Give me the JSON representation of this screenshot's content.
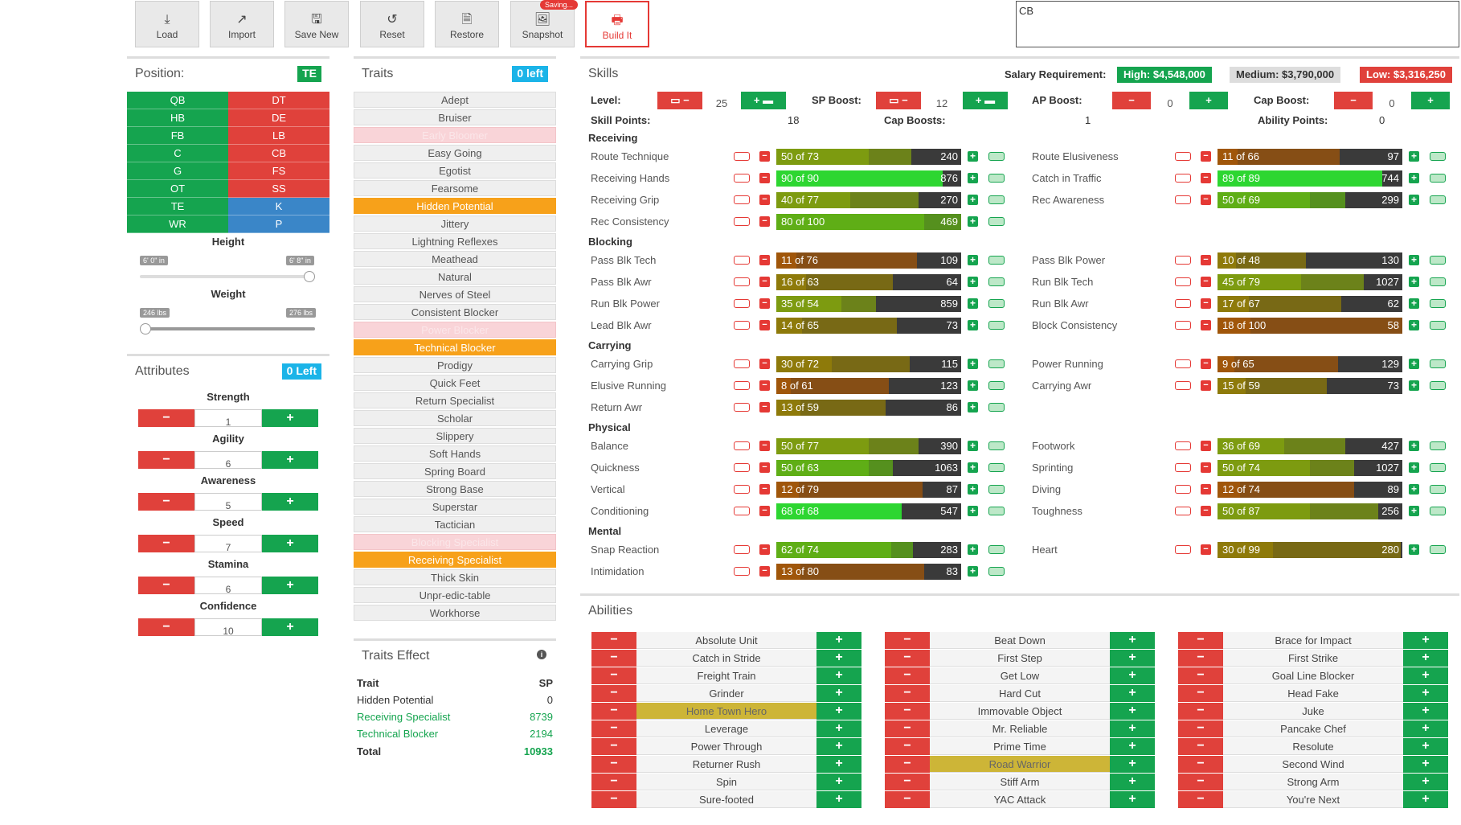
{
  "toolbar": {
    "load": "Load",
    "import": "Import",
    "save_new": "Save New",
    "reset": "Reset",
    "restore": "Restore",
    "snapshot": "Snapshot",
    "saving": "Saving...",
    "build": "Build It"
  },
  "notes_value": "CB",
  "position": {
    "title": "Position:",
    "badge": "TE",
    "left": [
      "QB",
      "HB",
      "FB",
      "C",
      "G",
      "OT",
      "TE",
      "WR"
    ],
    "right": [
      "DT",
      "DE",
      "LB",
      "CB",
      "FS",
      "SS",
      "K",
      "P"
    ]
  },
  "height": {
    "label": "Height",
    "min": "6' 0\" in",
    "max": "6' 8\" in",
    "fraction": 1.0
  },
  "weight": {
    "label": "Weight",
    "min": "246 lbs",
    "max": "276 lbs",
    "fraction": 0.0
  },
  "attributes": {
    "title": "Attributes",
    "badge": "0 Left",
    "items": [
      {
        "name": "Strength",
        "value": "1"
      },
      {
        "name": "Agility",
        "value": "6"
      },
      {
        "name": "Awareness",
        "value": "5"
      },
      {
        "name": "Speed",
        "value": "7"
      },
      {
        "name": "Stamina",
        "value": "6"
      },
      {
        "name": "Confidence",
        "value": "10"
      }
    ]
  },
  "traits": {
    "title": "Traits",
    "badge": "0 left",
    "items": [
      {
        "n": "Adept",
        "s": "n"
      },
      {
        "n": "Bruiser",
        "s": "n"
      },
      {
        "n": "Early Bloomer",
        "s": "d"
      },
      {
        "n": "Easy Going",
        "s": "n"
      },
      {
        "n": "Egotist",
        "s": "n"
      },
      {
        "n": "Fearsome",
        "s": "n"
      },
      {
        "n": "Hidden Potential",
        "s": "o"
      },
      {
        "n": "Jittery",
        "s": "n"
      },
      {
        "n": "Lightning Reflexes",
        "s": "n"
      },
      {
        "n": "Meathead",
        "s": "n"
      },
      {
        "n": "Natural",
        "s": "n"
      },
      {
        "n": "Nerves of Steel",
        "s": "n"
      },
      {
        "n": "Consistent Blocker",
        "s": "n"
      },
      {
        "n": "Power Blocker",
        "s": "d"
      },
      {
        "n": "Technical Blocker",
        "s": "o"
      },
      {
        "n": "Prodigy",
        "s": "n"
      },
      {
        "n": "Quick Feet",
        "s": "n"
      },
      {
        "n": "Return Specialist",
        "s": "n"
      },
      {
        "n": "Scholar",
        "s": "n"
      },
      {
        "n": "Slippery",
        "s": "n"
      },
      {
        "n": "Soft Hands",
        "s": "n"
      },
      {
        "n": "Spring Board",
        "s": "n"
      },
      {
        "n": "Strong Base",
        "s": "n"
      },
      {
        "n": "Superstar",
        "s": "n"
      },
      {
        "n": "Tactician",
        "s": "n"
      },
      {
        "n": "Blocking Specialist",
        "s": "d"
      },
      {
        "n": "Receiving Specialist",
        "s": "o"
      },
      {
        "n": "Thick Skin",
        "s": "n"
      },
      {
        "n": "Unpr-edic-table",
        "s": "n"
      },
      {
        "n": "Workhorse",
        "s": "n"
      }
    ]
  },
  "traits_effect": {
    "title": "Traits Effect",
    "h_trait": "Trait",
    "h_sp": "SP",
    "rows": [
      {
        "n": "Hidden Potential",
        "v": "0",
        "g": false
      },
      {
        "n": "Receiving Specialist",
        "v": "8739",
        "g": true
      },
      {
        "n": "Technical Blocker",
        "v": "2194",
        "g": true
      }
    ],
    "total_label": "Total",
    "total": "10933"
  },
  "skills": {
    "title": "Skills",
    "salary_label": "Salary Requirement:",
    "high": "High: $4,548,000",
    "medium": "Medium: $3,790,000",
    "low": "Low: $3,316,250",
    "level_label": "Level:",
    "level": "25",
    "sp_boost_label": "SP Boost:",
    "sp_boost": "12",
    "ap_boost_label": "AP Boost:",
    "ap_boost": "0",
    "cap_boost_label": "Cap Boost:",
    "cap_boost": "0",
    "skill_points_label": "Skill Points:",
    "skill_points": "18",
    "cap_boosts_label": "Cap Boosts:",
    "cap_boosts": "1",
    "ability_points_label": "Ability Points:",
    "ability_points": "0",
    "categories": [
      {
        "name": "Receiving",
        "left": [
          {
            "n": "Route Technique",
            "cur": 50,
            "max": 73,
            "cost": "240"
          },
          {
            "n": "Receiving Hands",
            "cur": 90,
            "max": 90,
            "cost": "876"
          },
          {
            "n": "Receiving Grip",
            "cur": 40,
            "max": 77,
            "cost": "270"
          },
          {
            "n": "Rec Consistency",
            "cur": 80,
            "max": 100,
            "cost": "469"
          }
        ],
        "right": [
          {
            "n": "Route Elusiveness",
            "cur": 11,
            "max": 66,
            "cost": "97"
          },
          {
            "n": "Catch in Traffic",
            "cur": 89,
            "max": 89,
            "cost": "744"
          },
          {
            "n": "Rec Awareness",
            "cur": 50,
            "max": 69,
            "cost": "299"
          }
        ]
      },
      {
        "name": "Blocking",
        "left": [
          {
            "n": "Pass Blk Tech",
            "cur": 11,
            "max": 76,
            "cost": "109"
          },
          {
            "n": "Pass Blk Awr",
            "cur": 16,
            "max": 63,
            "cost": "64"
          },
          {
            "n": "Run Blk Power",
            "cur": 35,
            "max": 54,
            "cost": "859"
          },
          {
            "n": "Lead Blk Awr",
            "cur": 14,
            "max": 65,
            "cost": "73"
          }
        ],
        "right": [
          {
            "n": "Pass Blk Power",
            "cur": 10,
            "max": 48,
            "cost": "130"
          },
          {
            "n": "Run Blk Tech",
            "cur": 45,
            "max": 79,
            "cost": "1027"
          },
          {
            "n": "Run Blk Awr",
            "cur": 17,
            "max": 67,
            "cost": "62"
          },
          {
            "n": "Block Consistency",
            "cur": 18,
            "max": 100,
            "cost": "58"
          }
        ]
      },
      {
        "name": "Carrying",
        "left": [
          {
            "n": "Carrying Grip",
            "cur": 30,
            "max": 72,
            "cost": "115"
          },
          {
            "n": "Elusive Running",
            "cur": 8,
            "max": 61,
            "cost": "123"
          },
          {
            "n": "Return Awr",
            "cur": 13,
            "max": 59,
            "cost": "86"
          }
        ],
        "right": [
          {
            "n": "Power Running",
            "cur": 9,
            "max": 65,
            "cost": "129"
          },
          {
            "n": "Carrying Awr",
            "cur": 15,
            "max": 59,
            "cost": "73"
          }
        ]
      },
      {
        "name": "Physical",
        "left": [
          {
            "n": "Balance",
            "cur": 50,
            "max": 77,
            "cost": "390"
          },
          {
            "n": "Quickness",
            "cur": 50,
            "max": 63,
            "cost": "1063"
          },
          {
            "n": "Vertical",
            "cur": 12,
            "max": 79,
            "cost": "87"
          },
          {
            "n": "Conditioning",
            "cur": 68,
            "max": 68,
            "cost": "547"
          }
        ],
        "right": [
          {
            "n": "Footwork",
            "cur": 36,
            "max": 69,
            "cost": "427"
          },
          {
            "n": "Sprinting",
            "cur": 50,
            "max": 74,
            "cost": "1027"
          },
          {
            "n": "Diving",
            "cur": 12,
            "max": 74,
            "cost": "89"
          },
          {
            "n": "Toughness",
            "cur": 50,
            "max": 87,
            "cost": "256"
          }
        ]
      },
      {
        "name": "Mental",
        "left": [
          {
            "n": "Snap Reaction",
            "cur": 62,
            "max": 74,
            "cost": "283"
          },
          {
            "n": "Intimidation",
            "cur": 13,
            "max": 80,
            "cost": "83"
          }
        ],
        "right": [
          {
            "n": "Heart",
            "cur": 30,
            "max": 99,
            "cost": "280"
          }
        ]
      }
    ]
  },
  "abilities": {
    "title": "Abilities",
    "cols": [
      [
        {
          "n": "Absolute Unit"
        },
        {
          "n": "Catch in Stride"
        },
        {
          "n": "Freight Train"
        },
        {
          "n": "Grinder"
        },
        {
          "n": "Home Town Hero",
          "sel": true
        },
        {
          "n": "Leverage"
        },
        {
          "n": "Power Through"
        },
        {
          "n": "Returner Rush"
        },
        {
          "n": "Spin"
        },
        {
          "n": "Sure-footed"
        }
      ],
      [
        {
          "n": "Beat Down"
        },
        {
          "n": "First Step"
        },
        {
          "n": "Get Low"
        },
        {
          "n": "Hard Cut"
        },
        {
          "n": "Immovable Object"
        },
        {
          "n": "Mr. Reliable"
        },
        {
          "n": "Prime Time"
        },
        {
          "n": "Road Warrior",
          "sel": true
        },
        {
          "n": "Stiff Arm"
        },
        {
          "n": "YAC Attack"
        }
      ],
      [
        {
          "n": "Brace for Impact"
        },
        {
          "n": "First Strike"
        },
        {
          "n": "Goal Line Blocker"
        },
        {
          "n": "Head Fake"
        },
        {
          "n": "Juke"
        },
        {
          "n": "Pancake Chef"
        },
        {
          "n": "Resolute"
        },
        {
          "n": "Second Wind"
        },
        {
          "n": "Strong Arm"
        },
        {
          "n": "You're Next"
        }
      ]
    ]
  }
}
